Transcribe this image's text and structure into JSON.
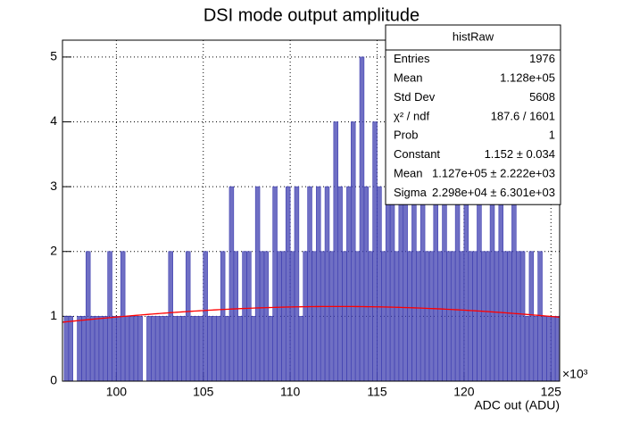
{
  "chart_data": {
    "type": "histogram",
    "title": "DSI mode output amplitude",
    "x_label": "ADC out (ADU)",
    "x_multiplier": "×10³",
    "bins": [
      97000,
      97250,
      97500,
      97750,
      98000,
      98250,
      98500,
      98750,
      99000,
      99250,
      99500,
      99750,
      100000,
      100250,
      100500,
      100750,
      101000,
      101250,
      101500,
      101750,
      102000,
      102250,
      102500,
      102750,
      103000,
      103250,
      103500,
      103750,
      104000,
      104250,
      104500,
      104750,
      105000,
      105250,
      105500,
      105750,
      106000,
      106250,
      106500,
      106750,
      107000,
      107250,
      107500,
      107750,
      108000,
      108250,
      108500,
      108750,
      109000,
      109250,
      109500,
      109750,
      110000,
      110250,
      110500,
      110750,
      111000,
      111250,
      111500,
      111750,
      112000,
      112250,
      112500,
      112750,
      113000,
      113250,
      113500,
      113750,
      114000,
      114250,
      114500,
      114750,
      115000,
      115250,
      115500,
      115750,
      116000,
      116250,
      116500,
      116750,
      117000,
      117250,
      117500,
      117750,
      118000,
      118250,
      118500,
      118750,
      119000,
      119250,
      119500,
      119750,
      120000,
      120250,
      120500,
      120750,
      121000,
      121250,
      121500,
      121750,
      122000,
      122250,
      122500,
      122750,
      123000,
      123250,
      123500,
      123750,
      124000,
      124250,
      124500,
      124750,
      125000,
      125250,
      125500
    ],
    "values": [
      1,
      1,
      0,
      1,
      1,
      2,
      1,
      1,
      1,
      1,
      2,
      1,
      1,
      2,
      1,
      1,
      1,
      1,
      0,
      1,
      1,
      1,
      1,
      1,
      2,
      1,
      1,
      1,
      2,
      1,
      1,
      1,
      2,
      1,
      1,
      1,
      2,
      1,
      3,
      2,
      1,
      2,
      2,
      1,
      3,
      2,
      2,
      1,
      3,
      2,
      2,
      3,
      2,
      3,
      1,
      2,
      3,
      2,
      3,
      2,
      3,
      2,
      4,
      3,
      2,
      3,
      4,
      2,
      5,
      3,
      2,
      4,
      3,
      2,
      4,
      3,
      2,
      3,
      3,
      2,
      3,
      2,
      3,
      2,
      2,
      3,
      2,
      3,
      2,
      2,
      4,
      2,
      3,
      2,
      2,
      3,
      2,
      2,
      5,
      2,
      3,
      2,
      2,
      3,
      2,
      2,
      1,
      2,
      1,
      2,
      1,
      1,
      1,
      1
    ],
    "color": "#3f3fb0",
    "xlim": [
      96900,
      125500
    ],
    "xticks": [
      {
        "value": 100000,
        "label": "100"
      },
      {
        "value": 105000,
        "label": "105"
      },
      {
        "value": 110000,
        "label": "110"
      },
      {
        "value": 115000,
        "label": "115"
      },
      {
        "value": 120000,
        "label": "120"
      },
      {
        "value": 125000,
        "label": "125"
      }
    ],
    "ylim": [
      0,
      5.26
    ],
    "yticks": [
      0,
      1,
      2,
      3,
      4,
      5
    ],
    "grid": true,
    "fit": {
      "constant": 1.152,
      "mean": 112700,
      "sigma": 22980,
      "color": "#ff0000"
    },
    "stats": {
      "name": "histRaw",
      "rows": [
        {
          "label": "Entries",
          "value": "1976"
        },
        {
          "label": "Mean",
          "value": "1.128e+05"
        },
        {
          "label": "Std Dev",
          "value": "5608"
        },
        {
          "label": "χ² / ndf",
          "value": "187.6 / 1601"
        },
        {
          "label": "Prob",
          "value": "1"
        },
        {
          "label": "Constant",
          "value": "1.152 ± 0.034"
        },
        {
          "label": "Mean",
          "value": "1.127e+05 ± 2.222e+03"
        },
        {
          "label": "Sigma",
          "value": "2.298e+04 ± 6.301e+03"
        }
      ]
    }
  }
}
